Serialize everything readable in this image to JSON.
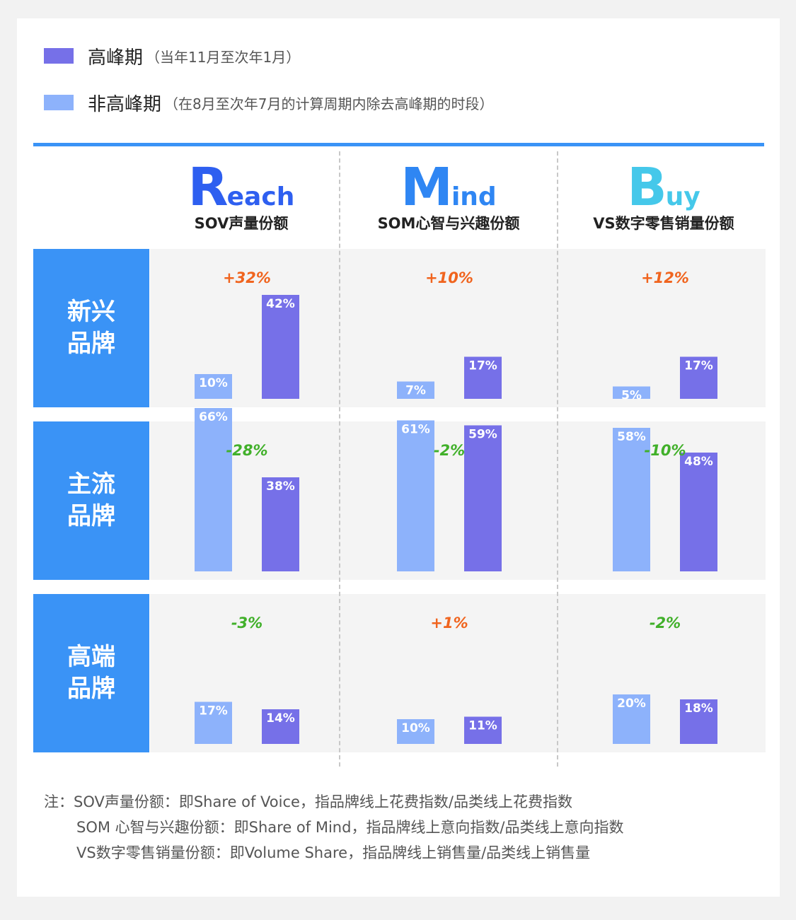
{
  "legend": [
    {
      "label": "高峰期",
      "note": "（当年11月至次年1月）",
      "color": "#7670e8"
    },
    {
      "label": "非高峰期",
      "note": "（在8月至次年7月的计算周期内除去高峰期的时段）",
      "color": "#8db2fb"
    }
  ],
  "columns": [
    {
      "big": "R",
      "rest": "each",
      "sub": "SOV声量份额",
      "color": "#2e5ff0"
    },
    {
      "big": "M",
      "rest": "ind",
      "sub": "SOM心智与兴趣份额",
      "color": "#2f86f3"
    },
    {
      "big": "B",
      "rest": "uy",
      "sub": "VS数字零售销量份额",
      "color": "#45c8ea"
    }
  ],
  "rows": [
    {
      "line1": "新兴",
      "line2": "品牌"
    },
    {
      "line1": "主流",
      "line2": "品牌"
    },
    {
      "line1": "高端",
      "line2": "品牌"
    }
  ],
  "chart_data": {
    "type": "bar",
    "series": [
      {
        "name": "非高峰期",
        "color": "#8db2fb"
      },
      {
        "name": "高峰期",
        "color": "#7670e8"
      }
    ],
    "panels": [
      [
        {
          "off": 10,
          "peak": 42,
          "change": "+32%"
        },
        {
          "off": 7,
          "peak": 17,
          "change": "+10%"
        },
        {
          "off": 5,
          "peak": 17,
          "change": "+12%"
        }
      ],
      [
        {
          "off": 66,
          "peak": 38,
          "change": "-28%"
        },
        {
          "off": 61,
          "peak": 59,
          "change": "-2%"
        },
        {
          "off": 58,
          "peak": 48,
          "change": "-10%"
        }
      ],
      [
        {
          "off": 17,
          "peak": 14,
          "change": "-3%"
        },
        {
          "off": 10,
          "peak": 11,
          "change": "+1%"
        },
        {
          "off": 20,
          "peak": 18,
          "change": "-2%"
        }
      ]
    ],
    "positive_color": "#f0641e",
    "negative_color": "#41b02a"
  },
  "notes": {
    "prefix": "注：",
    "lines": [
      "SOV声量份额：即Share of Voice，指品牌线上花费指数/品类线上花费指数",
      "SOM 心智与兴趣份额：即Share of Mind，指品牌线上意向指数/品类线上意向指数",
      "VS数字零售销量份额：即Volume Share，指品牌线上销售量/品类线上销售量"
    ]
  }
}
